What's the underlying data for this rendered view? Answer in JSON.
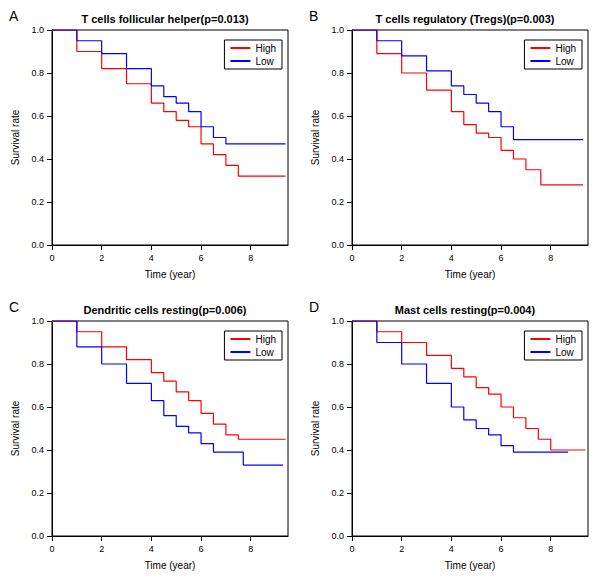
{
  "chart_data": [
    {
      "type": "line",
      "annotation": "A",
      "title": "T cells follicular helper(p=0.013)",
      "x_label": "Time (year)",
      "y_label": "Survival rate",
      "xlim": [
        0,
        9.5
      ],
      "xticks": [
        0,
        2,
        4,
        6,
        8
      ],
      "ylim": [
        0,
        1
      ],
      "yticks": [
        {
          "value": 0,
          "label": "0.0"
        },
        0.2,
        0.4,
        0.6,
        0.8,
        {
          "value": 1,
          "label": "1.0"
        }
      ],
      "grid": false,
      "legend": "topright",
      "line_style": "step",
      "series": [
        {
          "name": "High",
          "color": "#ff0000",
          "x": [
            0,
            1,
            2,
            3,
            4,
            4.5,
            5,
            5.5,
            6,
            6.5,
            7,
            7.5,
            9.4
          ],
          "values": [
            1,
            0.9,
            0.82,
            0.75,
            0.66,
            0.62,
            0.58,
            0.55,
            0.47,
            0.42,
            0.37,
            0.32,
            0.32
          ]
        },
        {
          "name": "Low",
          "color": "#0000ff",
          "x": [
            0,
            1,
            2,
            3,
            4,
            4.5,
            5,
            5.5,
            6,
            6.5,
            7,
            9.4
          ],
          "values": [
            1,
            0.95,
            0.89,
            0.82,
            0.74,
            0.69,
            0.66,
            0.62,
            0.55,
            0.5,
            0.47,
            0.47
          ]
        }
      ]
    },
    {
      "type": "line",
      "annotation": "B",
      "title": "T cells regulatory (Tregs)(p=0.003)",
      "x_label": "Time (year)",
      "y_label": "Survival rate",
      "xlim": [
        0,
        9.5
      ],
      "xticks": [
        0,
        2,
        4,
        6,
        8
      ],
      "ylim": [
        0,
        1
      ],
      "yticks": [
        {
          "value": 0,
          "label": "0.0"
        },
        0.2,
        0.4,
        0.6,
        0.8,
        {
          "value": 1,
          "label": "1.0"
        }
      ],
      "grid": false,
      "legend": "topright",
      "line_style": "step",
      "series": [
        {
          "name": "High",
          "color": "#ff0000",
          "x": [
            0,
            1,
            2,
            3,
            4,
            4.5,
            5,
            5.5,
            6,
            6.5,
            7,
            7.6,
            9.3
          ],
          "values": [
            1,
            0.89,
            0.8,
            0.72,
            0.62,
            0.56,
            0.52,
            0.5,
            0.44,
            0.4,
            0.35,
            0.28,
            0.28
          ]
        },
        {
          "name": "Low",
          "color": "#0000ff",
          "x": [
            0,
            1,
            2,
            3,
            4,
            4.5,
            5,
            5.5,
            6,
            6.5,
            9.3
          ],
          "values": [
            1,
            0.95,
            0.88,
            0.81,
            0.74,
            0.7,
            0.66,
            0.62,
            0.55,
            0.49,
            0.49
          ]
        }
      ]
    },
    {
      "type": "line",
      "annotation": "C",
      "title": "Dendritic cells resting(p=0.006)",
      "x_label": "Time (year)",
      "y_label": "Survival rate",
      "xlim": [
        0,
        9.5
      ],
      "xticks": [
        0,
        2,
        4,
        6,
        8
      ],
      "ylim": [
        0,
        1
      ],
      "yticks": [
        {
          "value": 0,
          "label": "0.0"
        },
        0.2,
        0.4,
        0.6,
        0.8,
        {
          "value": 1,
          "label": "1.0"
        }
      ],
      "grid": false,
      "legend": "topright",
      "line_style": "step",
      "series": [
        {
          "name": "High",
          "color": "#ff0000",
          "x": [
            0,
            1,
            2,
            3,
            4,
            4.5,
            5,
            5.5,
            6,
            6.5,
            7,
            7.5,
            9.4
          ],
          "values": [
            1,
            0.95,
            0.88,
            0.82,
            0.76,
            0.72,
            0.67,
            0.63,
            0.57,
            0.52,
            0.47,
            0.45,
            0.45
          ]
        },
        {
          "name": "Low",
          "color": "#0000ff",
          "x": [
            0,
            1,
            2,
            3,
            4,
            4.5,
            5,
            5.5,
            6,
            6.5,
            7.7,
            9.3
          ],
          "values": [
            1,
            0.88,
            0.8,
            0.71,
            0.63,
            0.56,
            0.51,
            0.48,
            0.43,
            0.39,
            0.33,
            0.33
          ]
        }
      ]
    },
    {
      "type": "line",
      "annotation": "D",
      "title": "Mast cells resting(p=0.004)",
      "x_label": "Time (year)",
      "y_label": "Survival rate",
      "xlim": [
        0,
        9.5
      ],
      "xticks": [
        0,
        2,
        4,
        6,
        8
      ],
      "ylim": [
        0,
        1
      ],
      "yticks": [
        {
          "value": 0,
          "label": "0.0"
        },
        0.2,
        0.4,
        0.6,
        0.8,
        {
          "value": 1,
          "label": "1.0"
        }
      ],
      "grid": false,
      "legend": "topright",
      "line_style": "step",
      "series": [
        {
          "name": "High",
          "color": "#ff0000",
          "x": [
            0,
            1,
            2,
            3,
            4,
            4.5,
            5,
            5.5,
            6,
            6.5,
            7,
            7.5,
            8,
            9.4
          ],
          "values": [
            1,
            0.95,
            0.9,
            0.84,
            0.78,
            0.74,
            0.69,
            0.66,
            0.6,
            0.55,
            0.5,
            0.45,
            0.4,
            0.4
          ]
        },
        {
          "name": "Low",
          "color": "#0000ff",
          "x": [
            0,
            1,
            2,
            3,
            4,
            4.5,
            5,
            5.5,
            6,
            6.5,
            8.7
          ],
          "values": [
            1,
            0.9,
            0.8,
            0.71,
            0.6,
            0.54,
            0.5,
            0.47,
            0.42,
            0.39,
            0.39
          ]
        }
      ]
    }
  ]
}
